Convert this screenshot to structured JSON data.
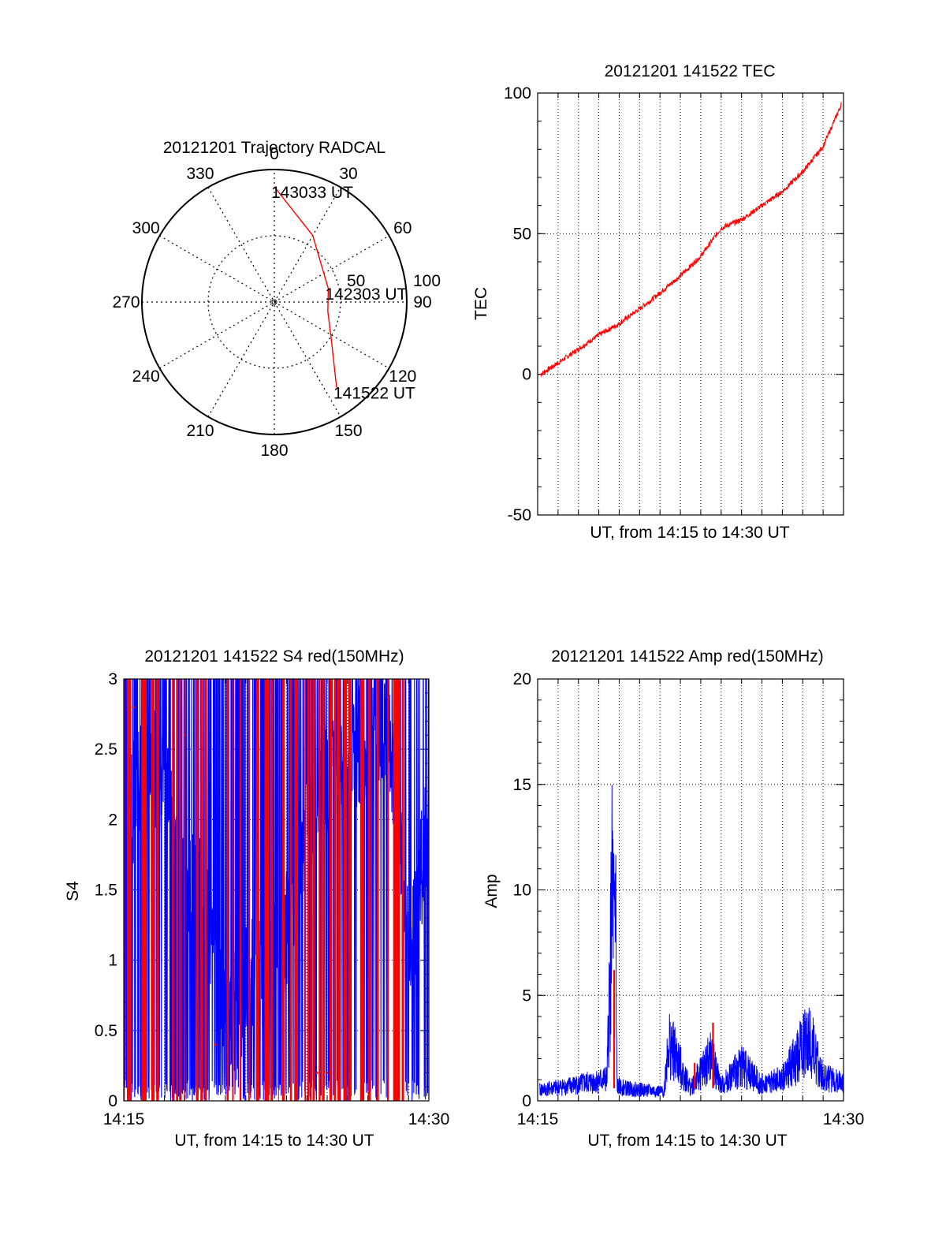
{
  "chart_data": [
    {
      "type": "polar",
      "title": "20121201 Trajectory RADCAL",
      "angle_labels": [
        "0",
        "30",
        "60",
        "90",
        "120",
        "150",
        "180",
        "210",
        "240",
        "270",
        "300",
        "330"
      ],
      "radial_labels": [
        "50",
        "100"
      ],
      "rlim": [
        0,
        100
      ],
      "grid": true,
      "trajectory": {
        "color": "#ff0000",
        "points": [
          {
            "azimuth": 0,
            "radius": 87
          },
          {
            "azimuth": 30,
            "radius": 58
          },
          {
            "azimuth": 76,
            "radius": 42
          },
          {
            "azimuth": 100,
            "radius": 41
          },
          {
            "azimuth": 124,
            "radius": 52
          },
          {
            "azimuth": 144,
            "radius": 80
          }
        ]
      },
      "annotations": [
        {
          "text": "143033 UT",
          "azimuth": 0,
          "radius": 87
        },
        {
          "text": "142303 UT",
          "azimuth": 76,
          "radius": 42
        },
        {
          "text": "141522 UT",
          "azimuth": 144,
          "radius": 80
        }
      ]
    },
    {
      "type": "line",
      "title": "20121201 141522 TEC",
      "xlabel": "UT, from 14:15 to 14:30 UT",
      "ylabel": "TEC",
      "ylim": [
        -50,
        100
      ],
      "yticks": [
        "100",
        "50",
        "0",
        "-50"
      ],
      "xlim_minutes": [
        0,
        15
      ],
      "grid": true,
      "series": [
        {
          "color": "#ff0000",
          "x_minutes": [
            0.15,
            1,
            2,
            3,
            4,
            5.5,
            7,
            8,
            9,
            10,
            11,
            12,
            13,
            14,
            14.9
          ],
          "y": [
            0,
            4,
            9,
            14,
            18,
            26,
            35,
            42,
            52,
            55,
            60,
            65,
            72,
            81,
            96
          ]
        }
      ]
    },
    {
      "type": "line",
      "title": "20121201 141522 S4 red(150MHz)",
      "xlabel": "UT, from 14:15 to 14:30 UT",
      "ylabel": "S4",
      "ylim": [
        0,
        3
      ],
      "yticks": [
        "3",
        "2.5",
        "2",
        "1.5",
        "1",
        "0.5",
        "0"
      ],
      "xticks": [
        "14:15",
        "14:30"
      ],
      "grid": true,
      "series": [
        {
          "color": "#0000ff",
          "x_minutes": [
            0,
            1,
            2,
            3,
            4,
            5,
            6,
            7,
            8,
            9,
            10,
            11,
            12,
            13,
            14,
            15
          ],
          "y": [
            1.8,
            2.5,
            2.2,
            1.5,
            1.4,
            0.5,
            0.8,
            1.0,
            1.2,
            2.0,
            2.3,
            2.4,
            2.6,
            2.7,
            1.0,
            2.0
          ]
        },
        {
          "color": "#ff0000",
          "x_minutes": [
            0.5,
            3,
            4.5,
            7.3,
            9.5,
            10,
            13.5
          ],
          "y": [
            2.8,
            2.6,
            0.4,
            0.2,
            0.2,
            0.2,
            0.3
          ]
        }
      ]
    },
    {
      "type": "line",
      "title": "20121201 141522 Amp red(150MHz)",
      "xlabel": "UT, from 14:15 to 14:30 UT",
      "ylabel": "Amp",
      "ylim": [
        0,
        20
      ],
      "yticks": [
        "20",
        "15",
        "10",
        "5",
        "0"
      ],
      "xticks": [
        "14:15",
        "14:30"
      ],
      "grid": true,
      "series": [
        {
          "color": "#0000ff",
          "x_minutes": [
            0.1,
            2,
            3.4,
            3.7,
            3.9,
            4.3,
            6.2,
            6.4,
            7.5,
            8.5,
            9,
            10,
            11,
            12,
            13.3,
            14,
            15
          ],
          "y": [
            0.6,
            0.9,
            1.2,
            12.8,
            0.8,
            0.7,
            0.5,
            3.3,
            0.7,
            2.4,
            0.8,
            2.0,
            0.9,
            1.2,
            3.5,
            1.3,
            1.0
          ]
        },
        {
          "color": "#ff0000",
          "x_minutes": [
            3.75,
            7.7,
            8.6
          ],
          "y": [
            6.2,
            1.8,
            3.7
          ]
        }
      ]
    }
  ]
}
